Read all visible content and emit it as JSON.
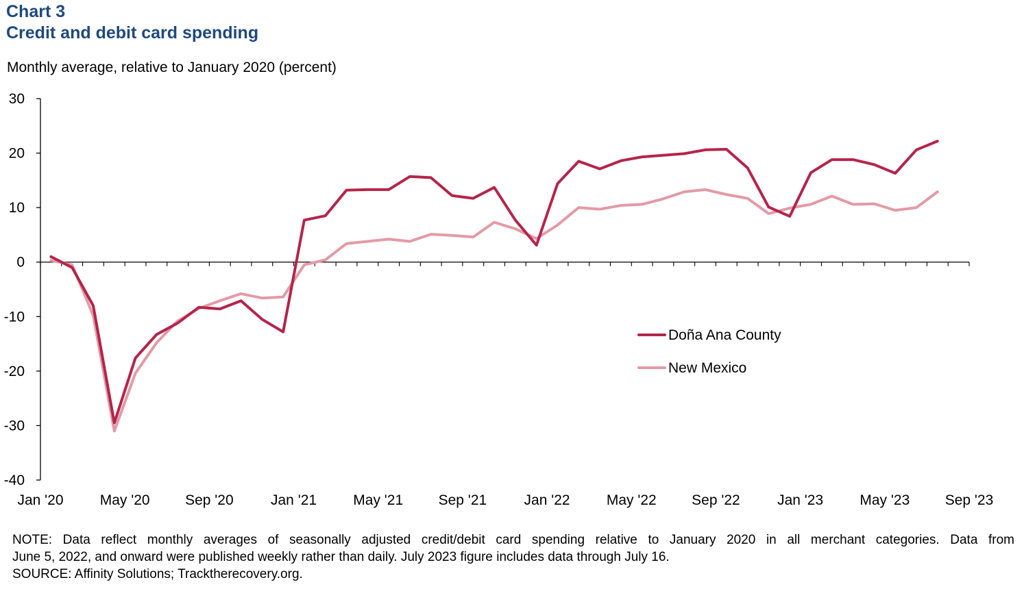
{
  "chart_data": {
    "type": "line",
    "chart_label": "Chart 3",
    "title": "Credit and debit card spending",
    "ylabel": "Monthly average, relative to January 2020 (percent)",
    "xlabel": "",
    "ylim": [
      -40,
      30
    ],
    "yticks": [
      30,
      20,
      10,
      0,
      -10,
      -20,
      -30,
      -40
    ],
    "xtick_labels": [
      "Jan '20",
      "May '20",
      "Sep '20",
      "Jan '21",
      "May '21",
      "Sep '21",
      "Jan '22",
      "May '22",
      "Sep '22",
      "Jan '23",
      "May '23",
      "Sep '23"
    ],
    "x_months": [
      "2020-01",
      "2020-02",
      "2020-03",
      "2020-04",
      "2020-05",
      "2020-06",
      "2020-07",
      "2020-08",
      "2020-09",
      "2020-10",
      "2020-11",
      "2020-12",
      "2021-01",
      "2021-02",
      "2021-03",
      "2021-04",
      "2021-05",
      "2021-06",
      "2021-07",
      "2021-08",
      "2021-09",
      "2021-10",
      "2021-11",
      "2021-12",
      "2022-01",
      "2022-02",
      "2022-03",
      "2022-04",
      "2022-05",
      "2022-06",
      "2022-07",
      "2022-08",
      "2022-09",
      "2022-10",
      "2022-11",
      "2022-12",
      "2023-01",
      "2023-02",
      "2023-03",
      "2023-04",
      "2023-05",
      "2023-06",
      "2023-07"
    ],
    "series": [
      {
        "name": "Doña Ana County",
        "color": "#b5244a",
        "values": [
          1.0,
          -1.0,
          -8.0,
          -29.5,
          -17.6,
          -13.3,
          -11.2,
          -8.3,
          -8.6,
          -7.1,
          -10.5,
          -12.8,
          7.7,
          8.5,
          13.2,
          13.3,
          13.3,
          15.7,
          15.5,
          12.2,
          11.7,
          13.7,
          7.7,
          3.1,
          14.4,
          18.5,
          17.1,
          18.6,
          19.3,
          19.6,
          19.9,
          20.6,
          20.7,
          17.3,
          10.1,
          8.4,
          16.4,
          18.8,
          18.8,
          17.9,
          16.3,
          20.6,
          22.2
        ]
      },
      {
        "name": "New Mexico",
        "color": "#e39aa6",
        "values": [
          0.3,
          -0.5,
          -9.8,
          -31.0,
          -20.4,
          -14.8,
          -10.8,
          -8.5,
          -7.1,
          -5.8,
          -6.6,
          -6.4,
          -0.5,
          0.4,
          3.4,
          3.8,
          4.2,
          3.8,
          5.1,
          4.9,
          4.6,
          7.3,
          6.1,
          4.3,
          6.8,
          10.0,
          9.7,
          10.4,
          10.6,
          11.6,
          12.9,
          13.3,
          12.4,
          11.7,
          8.9,
          9.9,
          10.6,
          12.1,
          10.6,
          10.7,
          9.5,
          10.0,
          12.9
        ]
      }
    ],
    "legend_position": "right-center"
  },
  "footnote": {
    "note_line1": "NOTE: Data reflect monthly averages of seasonally adjusted credit/debit card spending relative to January 2020 in all merchant categories. Data from",
    "note_line2": "June 5, 2022, and onward were published weekly rather than daily. July 2023 figure includes data through July 16.",
    "source": "SOURCE: Affinity Solutions; Tracktherecovery.org."
  }
}
